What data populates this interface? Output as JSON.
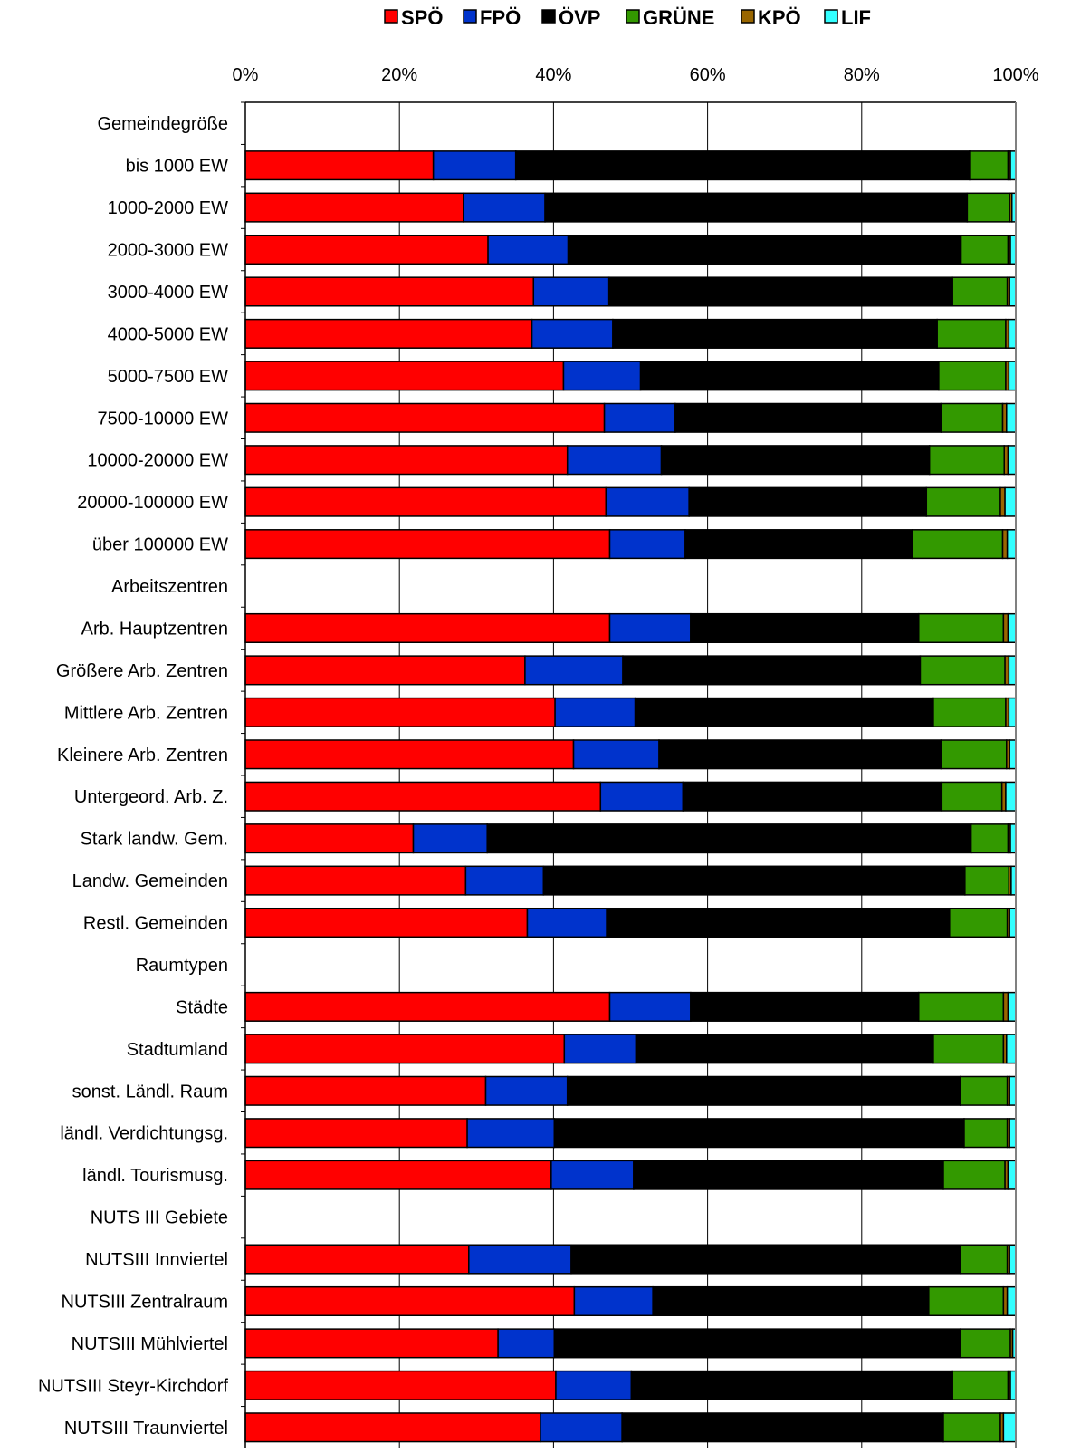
{
  "chart_data": {
    "type": "bar",
    "orientation": "horizontal",
    "stacked": "percent",
    "legend_position": "top",
    "grid": true,
    "xlim": [
      0,
      100
    ],
    "x_ticks": [
      "0%",
      "20%",
      "40%",
      "60%",
      "80%",
      "100%"
    ],
    "categories": [
      "Gemeindegröße",
      "bis 1000 EW",
      "1000-2000 EW",
      "2000-3000 EW",
      "3000-4000 EW",
      "4000-5000 EW",
      "5000-7500 EW",
      "7500-10000 EW",
      "10000-20000 EW",
      "20000-100000 EW",
      "über 100000 EW",
      "Arbeitszentren",
      "Arb. Hauptzentren",
      "Größere Arb. Zentren",
      "Mittlere Arb. Zentren",
      "Kleinere Arb. Zentren",
      "Untergeord. Arb. Z.",
      "Stark landw. Gem.",
      "Landw. Gemeinden",
      "Restl. Gemeinden",
      "Raumtypen",
      "Städte",
      "Stadtumland",
      "sonst. Ländl. Raum",
      "ländl. Verdichtungsg.",
      "ländl. Tourismusg.",
      "NUTS III Gebiete",
      "NUTSIII Innviertel",
      "NUTSIII Zentralraum",
      "NUTSIII Mühlviertel",
      "NUTSIII Steyr-Kirchdorf",
      "NUTSIII Traunviertel"
    ],
    "series": [
      {
        "name": "SPÖ",
        "color": "#ff0000",
        "values": [
          null,
          24.4,
          28.3,
          31.5,
          37.4,
          37.2,
          41.3,
          46.6,
          41.8,
          46.8,
          47.3,
          null,
          47.3,
          36.3,
          40.2,
          42.6,
          46.1,
          21.8,
          28.6,
          36.6,
          null,
          47.3,
          41.4,
          31.2,
          28.8,
          39.7,
          null,
          29.0,
          42.7,
          32.8,
          40.3,
          38.3
        ]
      },
      {
        "name": "FPÖ",
        "color": "#0033cc",
        "values": [
          null,
          10.7,
          10.6,
          10.4,
          9.8,
          10.5,
          10.0,
          9.2,
          12.2,
          10.8,
          9.8,
          null,
          10.5,
          12.7,
          10.4,
          11.1,
          10.7,
          9.6,
          10.1,
          10.3,
          null,
          10.5,
          9.3,
          10.6,
          11.3,
          10.7,
          null,
          13.3,
          10.2,
          7.3,
          9.8,
          10.6
        ]
      },
      {
        "name": "ÖVP",
        "color": "#000000",
        "values": [
          null,
          58.9,
          54.8,
          51.0,
          44.6,
          42.1,
          38.7,
          34.5,
          34.8,
          30.8,
          29.5,
          null,
          29.6,
          38.6,
          38.7,
          36.6,
          33.6,
          62.8,
          54.7,
          44.5,
          null,
          29.6,
          38.6,
          51.0,
          53.2,
          40.2,
          null,
          50.5,
          35.8,
          52.7,
          41.7,
          41.7
        ]
      },
      {
        "name": "GRÜNE",
        "color": "#339900",
        "values": [
          null,
          5.0,
          5.5,
          6.1,
          7.1,
          8.9,
          8.7,
          8.0,
          9.7,
          9.6,
          11.7,
          null,
          11.0,
          11.0,
          9.4,
          8.5,
          7.8,
          4.8,
          5.7,
          7.5,
          null,
          11.0,
          9.1,
          6.1,
          5.6,
          8.0,
          null,
          6.1,
          9.7,
          6.5,
          7.2,
          7.4
        ]
      },
      {
        "name": "KPÖ",
        "color": "#996600",
        "values": [
          null,
          0.3,
          0.3,
          0.3,
          0.3,
          0.4,
          0.4,
          0.5,
          0.5,
          0.6,
          0.6,
          null,
          0.6,
          0.5,
          0.4,
          0.4,
          0.5,
          0.3,
          0.3,
          0.3,
          null,
          0.6,
          0.4,
          0.3,
          0.3,
          0.4,
          null,
          0.3,
          0.5,
          0.3,
          0.3,
          0.4
        ]
      },
      {
        "name": "LIF",
        "color": "#33ffff",
        "values": [
          null,
          0.7,
          0.5,
          0.7,
          0.8,
          0.9,
          0.9,
          1.2,
          1.0,
          1.4,
          1.1,
          null,
          1.0,
          0.9,
          0.9,
          0.8,
          1.3,
          0.7,
          0.6,
          0.8,
          null,
          1.0,
          1.2,
          0.8,
          0.8,
          1.0,
          null,
          0.8,
          1.1,
          0.4,
          0.7,
          1.6
        ]
      }
    ]
  }
}
